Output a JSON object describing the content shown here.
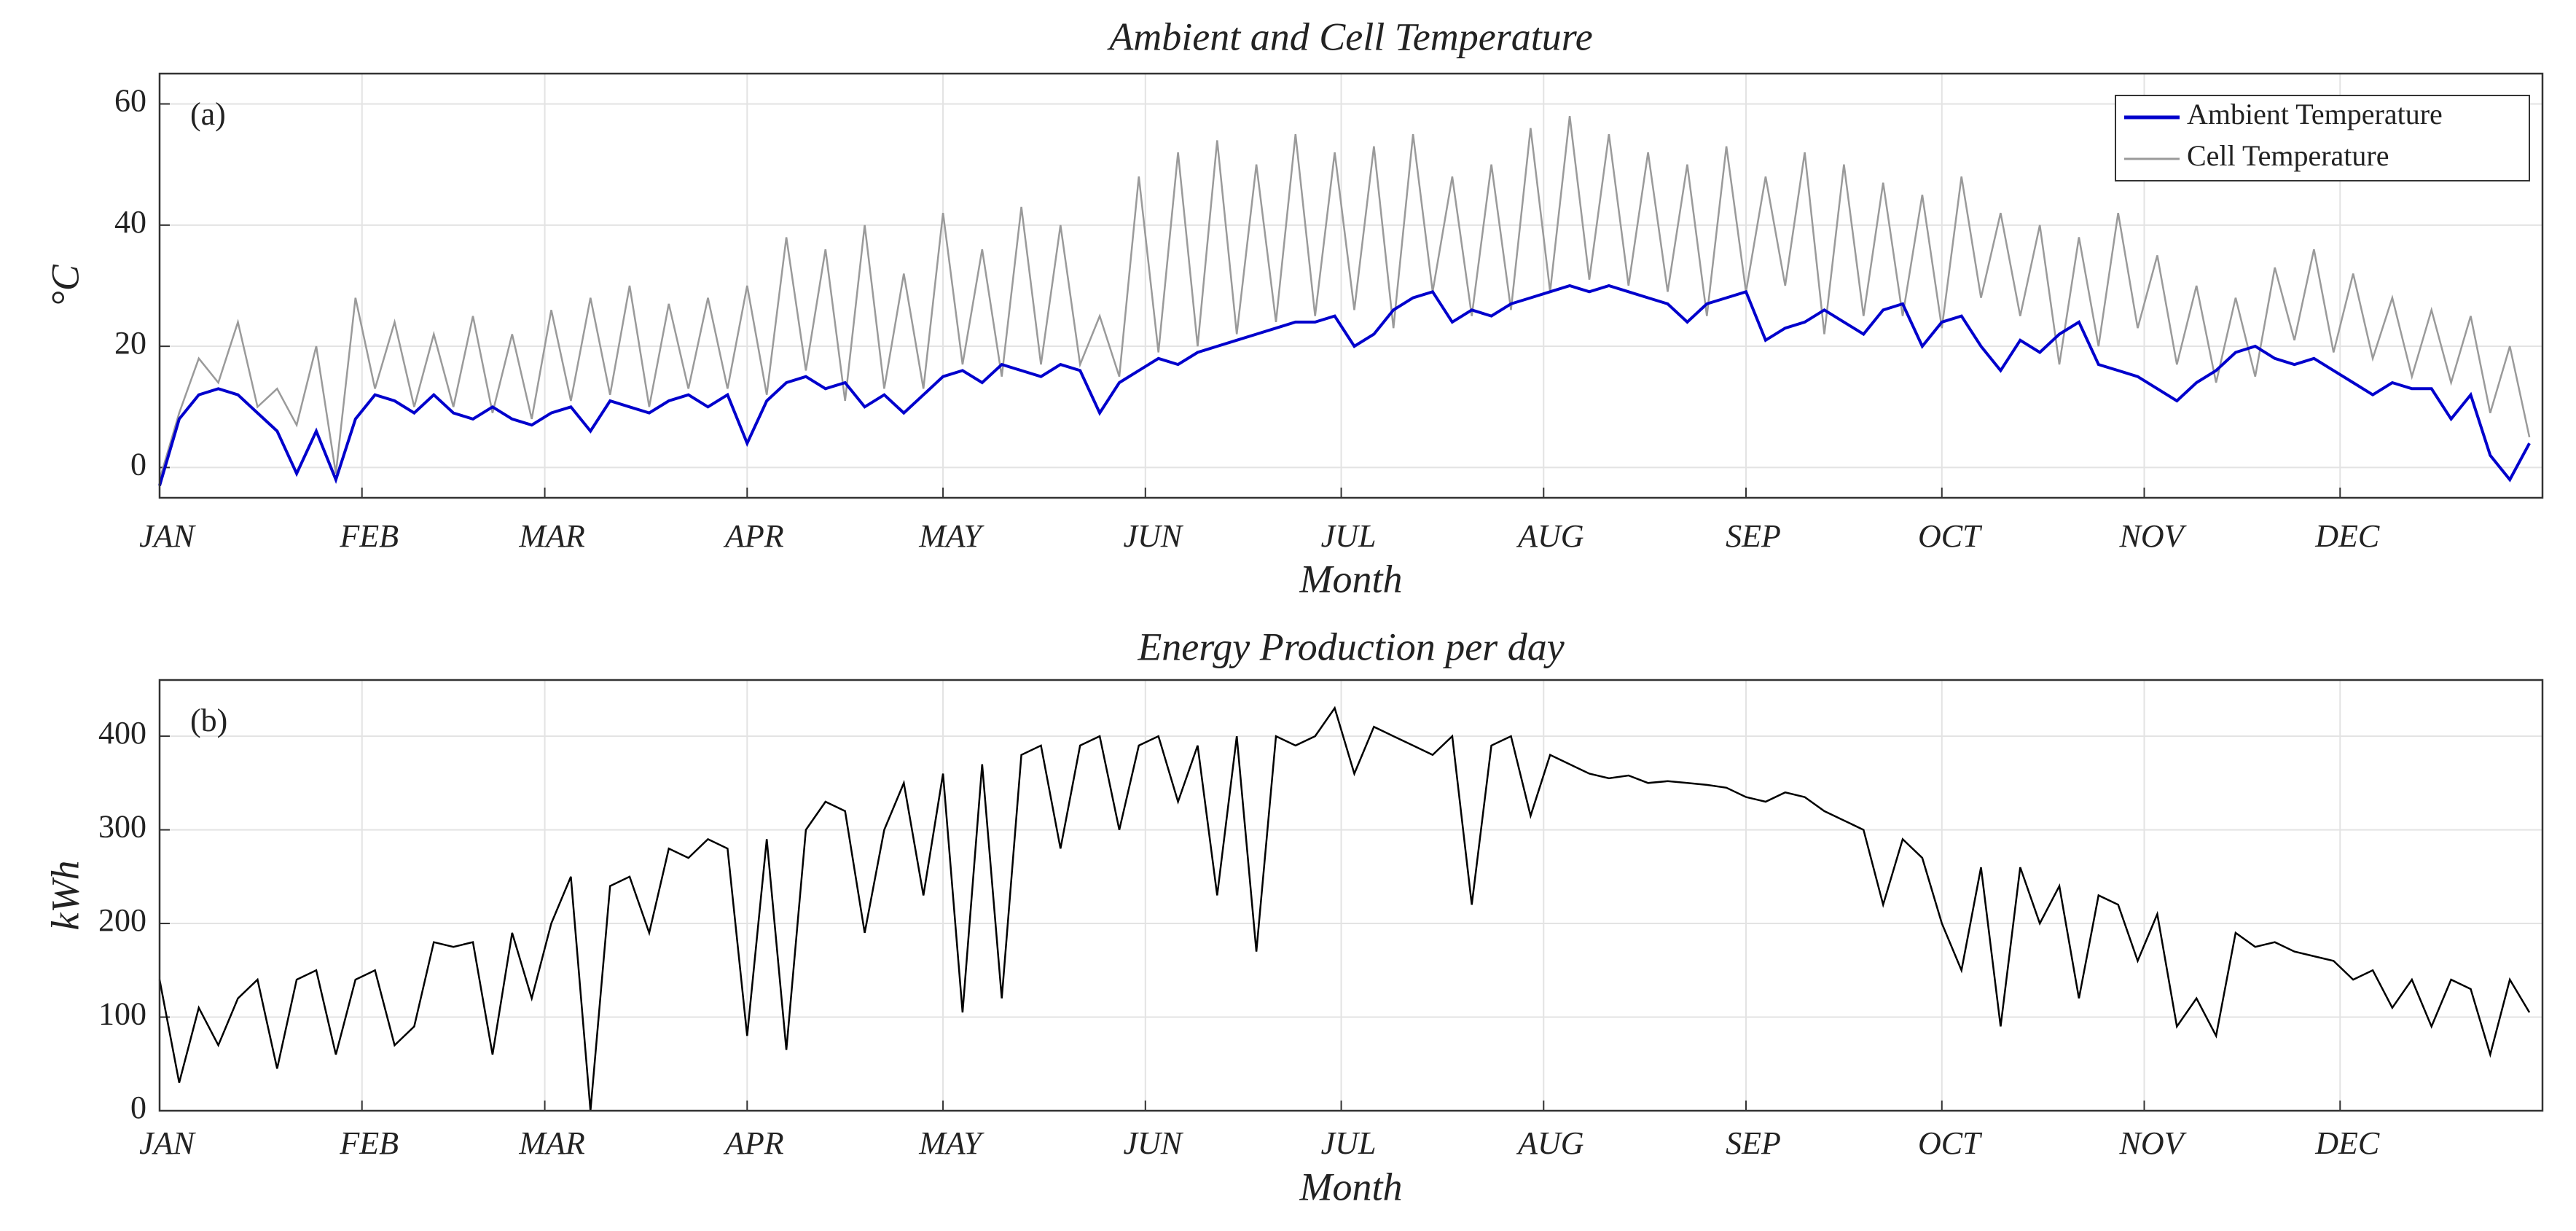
{
  "chart_data": [
    {
      "type": "line",
      "title": "Ambient and Cell Temperature",
      "xlabel": "Month",
      "ylabel": "°C",
      "annotation": "(a)",
      "x": [
        1,
        4,
        7,
        10,
        13,
        16,
        19,
        22,
        25,
        28,
        31,
        34,
        37,
        40,
        43,
        46,
        49,
        52,
        55,
        58,
        61,
        64,
        67,
        70,
        73,
        76,
        79,
        82,
        85,
        88,
        91,
        94,
        97,
        100,
        103,
        106,
        109,
        112,
        115,
        118,
        121,
        124,
        127,
        130,
        133,
        136,
        139,
        142,
        145,
        148,
        151,
        154,
        157,
        160,
        163,
        166,
        169,
        172,
        175,
        178,
        181,
        184,
        187,
        190,
        193,
        196,
        199,
        202,
        205,
        208,
        211,
        214,
        217,
        220,
        223,
        226,
        229,
        232,
        235,
        238,
        241,
        244,
        247,
        250,
        253,
        256,
        259,
        262,
        265,
        268,
        271,
        274,
        277,
        280,
        283,
        286,
        289,
        292,
        295,
        298,
        301,
        304,
        307,
        310,
        313,
        316,
        319,
        322,
        325,
        328,
        331,
        334,
        337,
        340,
        343,
        346,
        349,
        352,
        355,
        358,
        361,
        364
      ],
      "series": [
        {
          "name": "Ambient Temperature",
          "color": "#0000cc",
          "values": [
            -3,
            8,
            12,
            13,
            12,
            9,
            6,
            -1,
            6,
            -2,
            8,
            12,
            11,
            9,
            12,
            9,
            8,
            10,
            8,
            7,
            9,
            10,
            6,
            11,
            10,
            9,
            11,
            12,
            10,
            12,
            4,
            11,
            14,
            15,
            13,
            14,
            10,
            12,
            9,
            12,
            15,
            16,
            14,
            17,
            16,
            15,
            17,
            16,
            9,
            14,
            16,
            18,
            17,
            19,
            20,
            21,
            22,
            23,
            24,
            24,
            25,
            20,
            22,
            26,
            28,
            29,
            24,
            26,
            25,
            27,
            28,
            29,
            30,
            29,
            30,
            29,
            28,
            27,
            24,
            27,
            28,
            29,
            21,
            23,
            24,
            26,
            24,
            22,
            26,
            27,
            20,
            24,
            25,
            20,
            16,
            21,
            19,
            22,
            24,
            17,
            16,
            15,
            13,
            11,
            14,
            16,
            19,
            20,
            18,
            17,
            18,
            16,
            14,
            12,
            14,
            13,
            13,
            8,
            12,
            2,
            -2,
            4
          ]
        },
        {
          "name": "Cell Temperature",
          "color": "#9a9a9a",
          "values": [
            -2,
            9,
            18,
            14,
            24,
            10,
            13,
            7,
            20,
            -1,
            28,
            13,
            24,
            10,
            22,
            10,
            25,
            9,
            22,
            8,
            26,
            11,
            28,
            12,
            30,
            10,
            27,
            13,
            28,
            13,
            30,
            12,
            38,
            16,
            36,
            11,
            40,
            13,
            32,
            13,
            42,
            17,
            36,
            15,
            43,
            17,
            40,
            17,
            25,
            15,
            48,
            19,
            52,
            20,
            54,
            22,
            50,
            24,
            55,
            25,
            52,
            26,
            53,
            23,
            55,
            29,
            48,
            25,
            50,
            26,
            56,
            29,
            58,
            31,
            55,
            30,
            52,
            29,
            50,
            25,
            53,
            29,
            48,
            30,
            52,
            22,
            50,
            25,
            47,
            25,
            45,
            23,
            48,
            28,
            42,
            25,
            40,
            17,
            38,
            20,
            42,
            23,
            35,
            17,
            30,
            14,
            28,
            15,
            33,
            21,
            36,
            19,
            32,
            18,
            28,
            15,
            26,
            14,
            25,
            9,
            20,
            5
          ]
        }
      ],
      "xlim": [
        1,
        366
      ],
      "xticks": [
        {
          "value": 1,
          "label": "JAN"
        },
        {
          "value": 32,
          "label": "FEB"
        },
        {
          "value": 60,
          "label": "MAR"
        },
        {
          "value": 91,
          "label": "APR"
        },
        {
          "value": 121,
          "label": "MAY"
        },
        {
          "value": 152,
          "label": "JUN"
        },
        {
          "value": 182,
          "label": "JUL"
        },
        {
          "value": 213,
          "label": "AUG"
        },
        {
          "value": 244,
          "label": "SEP"
        },
        {
          "value": 274,
          "label": "OCT"
        },
        {
          "value": 305,
          "label": "NOV"
        },
        {
          "value": 335,
          "label": "DEC"
        }
      ],
      "ylim": [
        -5,
        65
      ],
      "yticks": [
        0,
        20,
        40,
        60
      ],
      "grid": true,
      "legend": "northeast"
    },
    {
      "type": "line",
      "title": "Energy Production per day",
      "xlabel": "Month",
      "ylabel": "kWh",
      "annotation": "(b)",
      "x": [
        1,
        4,
        7,
        10,
        13,
        16,
        19,
        22,
        25,
        28,
        31,
        34,
        37,
        40,
        43,
        46,
        49,
        52,
        55,
        58,
        61,
        64,
        67,
        70,
        73,
        76,
        79,
        82,
        85,
        88,
        91,
        94,
        97,
        100,
        103,
        106,
        109,
        112,
        115,
        118,
        121,
        124,
        127,
        130,
        133,
        136,
        139,
        142,
        145,
        148,
        151,
        154,
        157,
        160,
        163,
        166,
        169,
        172,
        175,
        178,
        181,
        184,
        187,
        190,
        193,
        196,
        199,
        202,
        205,
        208,
        211,
        214,
        217,
        220,
        223,
        226,
        229,
        232,
        235,
        238,
        241,
        244,
        247,
        250,
        253,
        256,
        259,
        262,
        265,
        268,
        271,
        274,
        277,
        280,
        283,
        286,
        289,
        292,
        295,
        298,
        301,
        304,
        307,
        310,
        313,
        316,
        319,
        322,
        325,
        328,
        331,
        334,
        337,
        340,
        343,
        346,
        349,
        352,
        355,
        358,
        361,
        364
      ],
      "series": [
        {
          "name": "Energy Production",
          "color": "#000000",
          "values": [
            140,
            30,
            110,
            70,
            120,
            140,
            45,
            140,
            150,
            60,
            140,
            150,
            70,
            90,
            180,
            175,
            180,
            60,
            190,
            120,
            200,
            250,
            0,
            240,
            250,
            190,
            280,
            270,
            290,
            280,
            80,
            290,
            65,
            300,
            330,
            320,
            190,
            300,
            350,
            230,
            360,
            105,
            370,
            120,
            380,
            390,
            280,
            390,
            400,
            300,
            390,
            400,
            330,
            390,
            230,
            400,
            170,
            400,
            390,
            400,
            430,
            360,
            410,
            400,
            390,
            380,
            400,
            220,
            390,
            400,
            315,
            380,
            370,
            360,
            355,
            358,
            350,
            352,
            350,
            348,
            345,
            335,
            330,
            340,
            335,
            320,
            310,
            300,
            220,
            290,
            270,
            200,
            150,
            260,
            90,
            260,
            200,
            240,
            120,
            230,
            220,
            160,
            210,
            90,
            120,
            80,
            190,
            175,
            180,
            170,
            165,
            160,
            140,
            150,
            110,
            140,
            90,
            140,
            130,
            60,
            140,
            105
          ]
        }
      ],
      "xlim": [
        1,
        366
      ],
      "xticks": [
        {
          "value": 1,
          "label": "JAN"
        },
        {
          "value": 32,
          "label": "FEB"
        },
        {
          "value": 60,
          "label": "MAR"
        },
        {
          "value": 91,
          "label": "APR"
        },
        {
          "value": 121,
          "label": "MAY"
        },
        {
          "value": 152,
          "label": "JUN"
        },
        {
          "value": 182,
          "label": "JUL"
        },
        {
          "value": 213,
          "label": "AUG"
        },
        {
          "value": 244,
          "label": "SEP"
        },
        {
          "value": 274,
          "label": "OCT"
        },
        {
          "value": 305,
          "label": "NOV"
        },
        {
          "value": 335,
          "label": "DEC"
        }
      ],
      "ylim": [
        0,
        460
      ],
      "yticks": [
        0,
        100,
        200,
        300,
        400
      ],
      "grid": true
    }
  ]
}
